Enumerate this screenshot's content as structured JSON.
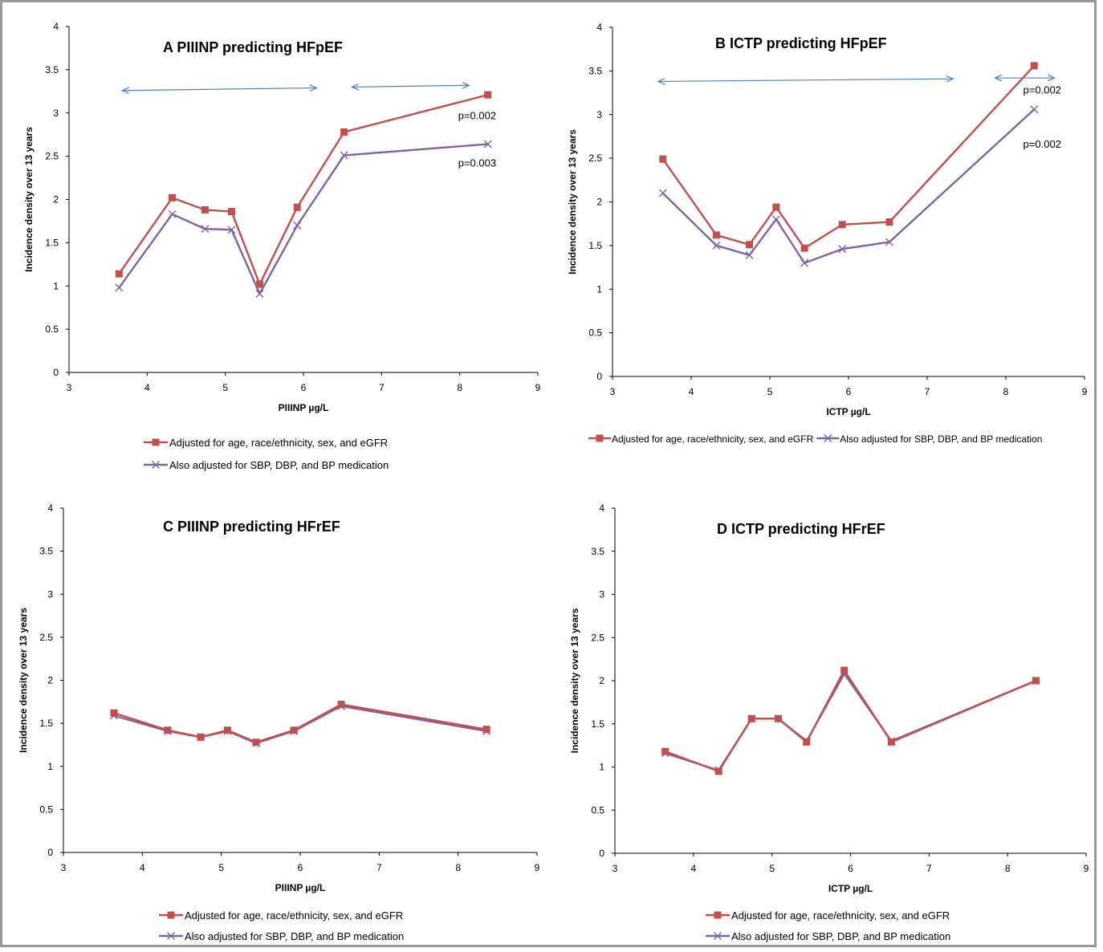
{
  "colors": {
    "series1": "#c0504d",
    "series2": "#8064a2",
    "arrow": "#4f81bd",
    "axis": "#000000"
  },
  "legend_labels": [
    "Adjusted for age, race/ethnicity, sex, and eGFR",
    "Also adjusted for SBP, DBP, and BP medication"
  ],
  "chart_data": [
    {
      "type": "line",
      "title": "A  PIIINP predicting HFpEF",
      "xlabel": "PIIINP  µg/L",
      "ylabel": "Incidence density over 13 years",
      "xlim": [
        3,
        9
      ],
      "ylim": [
        0,
        4
      ],
      "xticks": [
        "3",
        "4",
        "5",
        "6",
        "7",
        "8",
        "9"
      ],
      "yticks": [
        "0",
        "0.5",
        "1",
        "1.5",
        "2",
        "2.5",
        "3",
        "3.5",
        "4"
      ],
      "grid": false,
      "legend_position": "bottom-stacked",
      "series": [
        {
          "name": "Adjusted for age, race/ethnicity, sex, and eGFR",
          "marker": "square",
          "x": [
            3.64,
            4.32,
            4.74,
            5.08,
            5.44,
            5.92,
            6.52,
            8.36
          ],
          "y": [
            1.14,
            2.02,
            1.88,
            1.86,
            1.02,
            1.91,
            2.78,
            3.21
          ]
        },
        {
          "name": "Also adjusted for SBP, DBP, and BP medication",
          "marker": "x",
          "x": [
            3.64,
            4.32,
            4.74,
            5.08,
            5.44,
            5.92,
            6.52,
            8.36
          ],
          "y": [
            0.98,
            1.83,
            1.66,
            1.65,
            0.91,
            1.7,
            2.51,
            2.64
          ]
        }
      ],
      "annotations": [
        {
          "text": "p=0.002",
          "x": 7.98,
          "y": 2.93
        },
        {
          "text": "p=0.003",
          "x": 7.98,
          "y": 2.38
        }
      ],
      "arrows": [
        {
          "x1": 3.68,
          "y1": 3.26,
          "x2": 6.17,
          "y2": 3.29
        },
        {
          "x1": 6.62,
          "y1": 3.3,
          "x2": 8.12,
          "y2": 3.32
        }
      ]
    },
    {
      "type": "line",
      "title": "B  ICTP predicting HFpEF",
      "xlabel": "ICTP µg/L",
      "ylabel": "Incidence density over 13 years",
      "xlim": [
        3,
        9
      ],
      "ylim": [
        0,
        4
      ],
      "xticks": [
        "3",
        "4",
        "5",
        "6",
        "7",
        "8",
        "9"
      ],
      "yticks": [
        "0",
        "0.5",
        "1",
        "1.5",
        "2",
        "2.5",
        "3",
        "3.5",
        "4"
      ],
      "grid": false,
      "legend_position": "bottom-inline",
      "series": [
        {
          "name": "Adjusted for age, race/ethnicity, sex, and eGFR",
          "marker": "square",
          "x": [
            3.64,
            4.32,
            4.74,
            5.08,
            5.44,
            5.92,
            6.52,
            8.36
          ],
          "y": [
            2.49,
            1.62,
            1.51,
            1.94,
            1.47,
            1.74,
            1.77,
            3.56
          ]
        },
        {
          "name": "Also adjusted for SBP, DBP, and BP medication",
          "marker": "x",
          "x": [
            3.64,
            4.32,
            4.74,
            5.08,
            5.44,
            5.92,
            6.52,
            8.36
          ],
          "y": [
            2.1,
            1.5,
            1.39,
            1.8,
            1.3,
            1.46,
            1.54,
            3.06
          ]
        }
      ],
      "annotations": [
        {
          "text": "p=0.002",
          "x": 8.22,
          "y": 3.24
        },
        {
          "text": "p=0.002",
          "x": 8.22,
          "y": 2.62
        }
      ],
      "arrows": [
        {
          "x1": 3.58,
          "y1": 3.38,
          "x2": 7.33,
          "y2": 3.41
        },
        {
          "x1": 7.86,
          "y1": 3.42,
          "x2": 8.62,
          "y2": 3.42
        }
      ]
    },
    {
      "type": "line",
      "title": "C  PIIINP predicting HFrEF",
      "xlabel": "PIIINP  µg/L",
      "ylabel": "Incidence density over 13 years",
      "xlim": [
        3,
        9
      ],
      "ylim": [
        0,
        4
      ],
      "xticks": [
        "3",
        "4",
        "5",
        "6",
        "7",
        "8",
        "9"
      ],
      "yticks": [
        "0",
        "0.5",
        "1",
        "1.5",
        "2",
        "2.5",
        "3",
        "3.5",
        "4"
      ],
      "grid": false,
      "legend_position": "bottom-stacked",
      "series": [
        {
          "name": "Adjusted for age, race/ethnicity, sex, and eGFR",
          "marker": "square",
          "x": [
            3.64,
            4.32,
            4.74,
            5.08,
            5.44,
            5.92,
            6.52,
            8.36
          ],
          "y": [
            1.62,
            1.42,
            1.34,
            1.42,
            1.28,
            1.42,
            1.72,
            1.43
          ]
        },
        {
          "name": "Also adjusted for SBP, DBP, and BP medication",
          "marker": "x",
          "x": [
            3.64,
            4.32,
            4.74,
            5.08,
            5.44,
            5.92,
            6.52,
            8.36
          ],
          "y": [
            1.59,
            1.41,
            1.34,
            1.41,
            1.27,
            1.41,
            1.7,
            1.41
          ]
        }
      ]
    },
    {
      "type": "line",
      "title": "D  ICTP predicting HFrEF",
      "xlabel": "ICTP µg/L",
      "ylabel": "Incidence density over 13 years",
      "xlim": [
        3,
        9
      ],
      "ylim": [
        0,
        4
      ],
      "xticks": [
        "3",
        "4",
        "5",
        "6",
        "7",
        "8",
        "9"
      ],
      "yticks": [
        "0",
        "0.5",
        "1",
        "1.5",
        "2",
        "2.5",
        "3",
        "3.5",
        "4"
      ],
      "grid": false,
      "legend_position": "bottom-stacked",
      "series": [
        {
          "name": "Adjusted for age, race/ethnicity, sex, and eGFR",
          "marker": "square",
          "x": [
            3.64,
            4.32,
            4.74,
            5.08,
            5.44,
            5.92,
            6.52,
            8.36
          ],
          "y": [
            1.18,
            0.95,
            1.56,
            1.56,
            1.29,
            2.12,
            1.29,
            2.0
          ]
        },
        {
          "name": "Also adjusted for SBP, DBP, and BP medication",
          "marker": "x",
          "x": [
            3.64,
            4.32,
            4.74,
            5.08,
            5.44,
            5.92,
            6.52,
            8.36
          ],
          "y": [
            1.16,
            0.96,
            1.56,
            1.56,
            1.3,
            2.08,
            1.3,
            2.0
          ]
        }
      ]
    }
  ]
}
